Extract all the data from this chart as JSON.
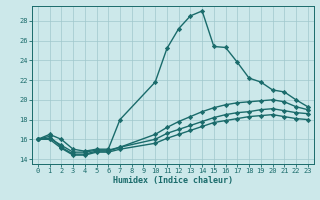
{
  "title": "",
  "xlabel": "Humidex (Indice chaleur)",
  "bg_color": "#cce8ea",
  "line_color": "#1a6b6b",
  "grid_color": "#a0c8cc",
  "xlim": [
    -0.5,
    23.5
  ],
  "ylim": [
    13.5,
    29.5
  ],
  "xticks": [
    0,
    1,
    2,
    3,
    4,
    5,
    6,
    7,
    8,
    9,
    10,
    11,
    12,
    13,
    14,
    15,
    16,
    17,
    18,
    19,
    20,
    21,
    22,
    23
  ],
  "yticks": [
    14,
    16,
    18,
    20,
    22,
    24,
    26,
    28
  ],
  "series": [
    {
      "x": [
        0,
        1,
        2,
        3,
        4,
        5,
        6,
        7,
        10,
        11,
        12,
        13,
        14,
        15,
        16,
        17,
        18,
        19,
        20,
        21,
        22,
        23
      ],
      "y": [
        16.0,
        16.5,
        16.0,
        15.0,
        14.8,
        15.0,
        15.0,
        18.0,
        21.8,
        25.2,
        27.2,
        28.5,
        29.0,
        25.4,
        25.3,
        23.8,
        22.2,
        21.8,
        21.0,
        20.8,
        20.0,
        19.3
      ],
      "linewidth": 1.0,
      "linestyle": "-",
      "marker": "D",
      "markersize": 2.2
    },
    {
      "x": [
        0,
        1,
        2,
        3,
        4,
        5,
        6,
        7,
        10,
        11,
        12,
        13,
        14,
        15,
        16,
        17,
        18,
        19,
        20,
        21,
        22,
        23
      ],
      "y": [
        16.0,
        16.3,
        15.2,
        14.5,
        14.5,
        14.8,
        14.8,
        15.2,
        16.5,
        17.2,
        17.8,
        18.3,
        18.8,
        19.2,
        19.5,
        19.7,
        19.8,
        19.9,
        20.0,
        19.8,
        19.3,
        19.0
      ],
      "linewidth": 1.0,
      "linestyle": "-",
      "marker": "D",
      "markersize": 2.2
    },
    {
      "x": [
        0,
        1,
        2,
        3,
        4,
        5,
        6,
        7,
        10,
        11,
        12,
        13,
        14,
        15,
        16,
        17,
        18,
        19,
        20,
        21,
        22,
        23
      ],
      "y": [
        16.0,
        16.1,
        15.4,
        14.7,
        14.7,
        14.9,
        14.9,
        15.2,
        16.0,
        16.6,
        17.0,
        17.4,
        17.8,
        18.2,
        18.5,
        18.7,
        18.8,
        19.0,
        19.1,
        18.9,
        18.7,
        18.6
      ],
      "linewidth": 1.0,
      "linestyle": "-",
      "marker": "D",
      "markersize": 2.2
    },
    {
      "x": [
        0,
        1,
        2,
        3,
        4,
        5,
        6,
        7,
        10,
        11,
        12,
        13,
        14,
        15,
        16,
        17,
        18,
        19,
        20,
        21,
        22,
        23
      ],
      "y": [
        16.0,
        16.0,
        15.1,
        14.4,
        14.4,
        14.7,
        14.7,
        15.0,
        15.6,
        16.1,
        16.5,
        16.9,
        17.3,
        17.7,
        17.9,
        18.1,
        18.3,
        18.4,
        18.5,
        18.3,
        18.1,
        18.0
      ],
      "linewidth": 1.0,
      "linestyle": "-",
      "marker": "D",
      "markersize": 2.2
    }
  ],
  "xlabel_fontsize": 6.0,
  "tick_labelsize": 5.0
}
